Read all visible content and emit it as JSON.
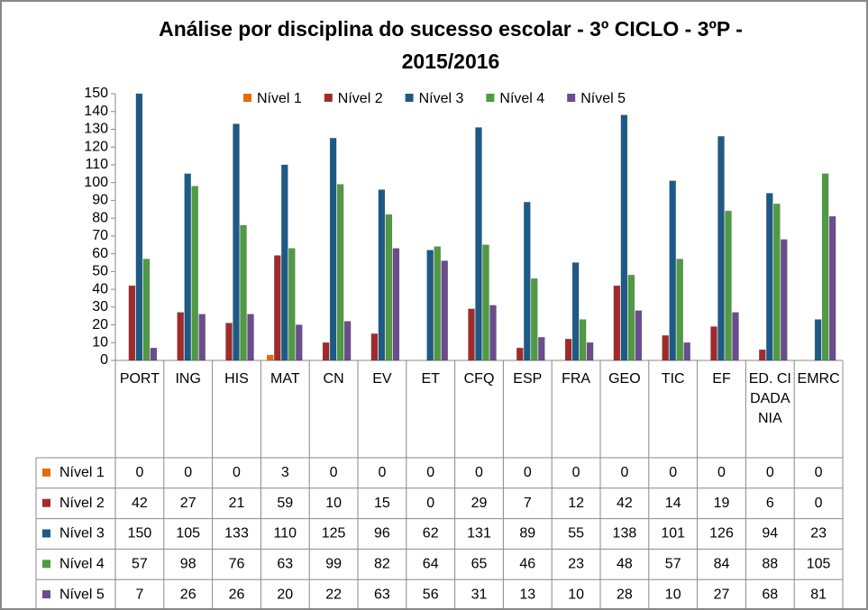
{
  "chart_data": {
    "type": "bar",
    "title": "Análise por disciplina do sucesso escolar -  3º CICLO - 3ºP - 2015/2016",
    "categories": [
      "PORT",
      "ING",
      "HIS",
      "MAT",
      "CN",
      "EV",
      "ET",
      "CFQ",
      "ESP",
      "FRA",
      "GEO",
      "TIC",
      "EF",
      "ED. CIDADANIA",
      "EMRC"
    ],
    "series": [
      {
        "name": "Nível 1",
        "color": "#e46c0a",
        "values": [
          0,
          0,
          0,
          3,
          0,
          0,
          0,
          0,
          0,
          0,
          0,
          0,
          0,
          0,
          0
        ]
      },
      {
        "name": "Nível 2",
        "color": "#a02b2d",
        "values": [
          42,
          27,
          21,
          59,
          10,
          15,
          0,
          29,
          7,
          12,
          42,
          14,
          19,
          6,
          0
        ]
      },
      {
        "name": "Nível 3",
        "color": "#1d5a86",
        "values": [
          150,
          105,
          133,
          110,
          125,
          96,
          62,
          131,
          89,
          55,
          138,
          101,
          126,
          94,
          23
        ]
      },
      {
        "name": "Nível 4",
        "color": "#4f9a42",
        "values": [
          57,
          98,
          76,
          63,
          99,
          82,
          64,
          65,
          46,
          23,
          48,
          57,
          84,
          88,
          105
        ]
      },
      {
        "name": "Nível 5",
        "color": "#6a4d8c",
        "values": [
          7,
          26,
          26,
          20,
          22,
          63,
          56,
          31,
          13,
          10,
          28,
          10,
          27,
          68,
          81
        ]
      }
    ],
    "ylim": [
      0,
      150
    ],
    "yticks": [
      0,
      10,
      20,
      30,
      40,
      50,
      60,
      70,
      80,
      90,
      100,
      110,
      120,
      130,
      140,
      150
    ],
    "legend": "top"
  }
}
